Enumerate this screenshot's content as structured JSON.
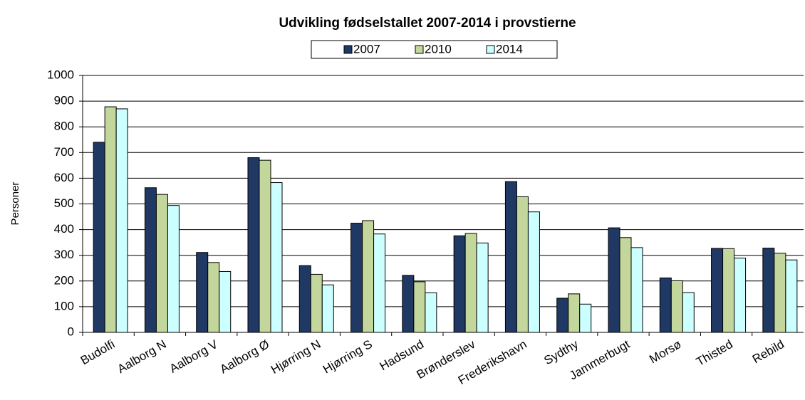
{
  "chart_data": {
    "type": "bar",
    "title": "Udvikling fødselstallet 2007-2014 i provstierne",
    "y_label": "Personer",
    "categories": [
      "Budolfi",
      "Aalborg N",
      "Aalborg V",
      "Aalborg Ø",
      "Hjørring N",
      "Hjørring S",
      "Hadsund",
      "Brønderslev",
      "Frederikshavn",
      "Sydthy",
      "Jammerbugt",
      "Morsø",
      "Thisted",
      "Rebild"
    ],
    "series": [
      {
        "name": "2007",
        "color": "#203864",
        "values": [
          740,
          563,
          311,
          680,
          260,
          425,
          222,
          376,
          587,
          133,
          407,
          212,
          327,
          328
        ]
      },
      {
        "name": "2010",
        "color": "#c3d69b",
        "values": [
          878,
          537,
          272,
          670,
          226,
          435,
          197,
          385,
          528,
          150,
          369,
          201,
          326,
          308
        ]
      },
      {
        "name": "2014",
        "color": "#ccffff",
        "values": [
          870,
          494,
          237,
          583,
          185,
          383,
          154,
          348,
          469,
          110,
          330,
          155,
          289,
          282
        ]
      }
    ],
    "ylim": [
      0,
      1000
    ],
    "yticks": [
      0,
      100,
      200,
      300,
      400,
      500,
      600,
      700,
      800,
      900,
      1000
    ],
    "grid": true,
    "legend": "top"
  }
}
